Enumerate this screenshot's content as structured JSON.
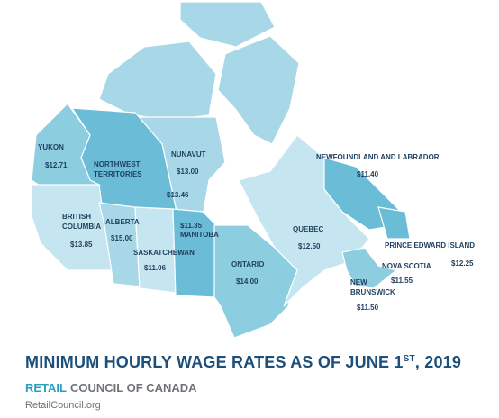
{
  "title": {
    "main": "MINIMUM HOURLY WAGE RATES AS OF JUNE 1",
    "superscript": "ST",
    "end": ", 2019"
  },
  "subtitle": {
    "brand": "RETAIL",
    "rest": "COUNCIL OF CANADA"
  },
  "footer": "RetailCouncil.org",
  "provinces": [
    {
      "name_lines": [
        "YUKON"
      ],
      "wage": "$12.71"
    },
    {
      "name_lines": [
        "NORTHWEST",
        "TERRITORIES"
      ],
      "wage": "$13.46"
    },
    {
      "name_lines": [
        "NUNAVUT"
      ],
      "wage": "$13.00"
    },
    {
      "name_lines": [
        "NEWFOUNDLAND AND LABRADOR"
      ],
      "wage": "$11.40"
    },
    {
      "name_lines": [
        "BRITISH",
        "COLUMBIA"
      ],
      "wage": "$13.85"
    },
    {
      "name_lines": [
        "ALBERTA"
      ],
      "wage": "$15.00"
    },
    {
      "name_lines": [
        "MANITOBA"
      ],
      "wage": "$11.35"
    },
    {
      "name_lines": [
        "SASKATCHEWAN"
      ],
      "wage": "$11.06"
    },
    {
      "name_lines": [
        "QUEBEC"
      ],
      "wage": "$12.50"
    },
    {
      "name_lines": [
        "ONTARIO"
      ],
      "wage": "$14.00"
    },
    {
      "name_lines": [
        "PRINCE EDWARD ISLAND"
      ],
      "wage": "$12.25"
    },
    {
      "name_lines": [
        "NOVA SCOTIA"
      ],
      "wage": "$11.55"
    },
    {
      "name_lines": [
        "NEW",
        "BRUNSWICK"
      ],
      "wage": "$11.50"
    }
  ]
}
